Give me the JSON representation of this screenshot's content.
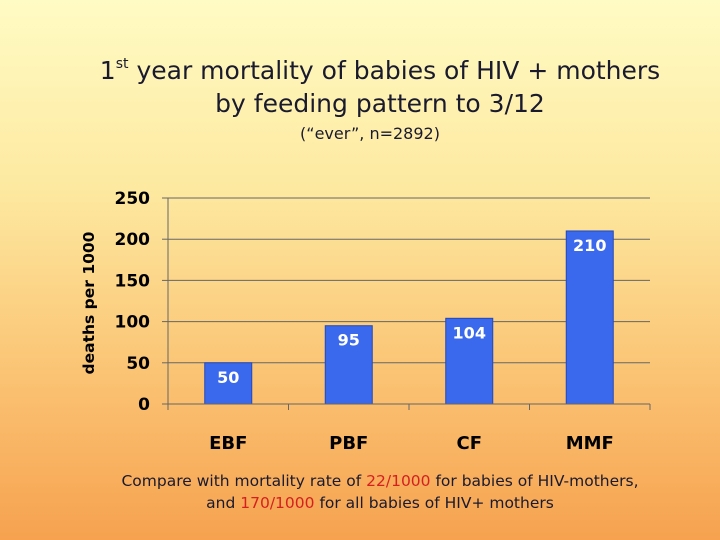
{
  "title": {
    "line1_prefix": "1",
    "line1_sup": "st",
    "line1_rest": " year mortality of babies of HIV + mothers",
    "line2": "by feeding pattern to 3/12"
  },
  "subtitle": "(“ever”, n=2892)",
  "chart_data": {
    "type": "bar",
    "categories": [
      "EBF",
      "PBF",
      "CF",
      "MMF"
    ],
    "values": [
      50,
      95,
      104,
      210
    ],
    "data_labels": [
      "50",
      "95",
      "104",
      "210"
    ],
    "ylabel": "deaths per 1000",
    "ylim": [
      0,
      250
    ],
    "yticks": [
      0,
      50,
      100,
      150,
      200,
      250
    ],
    "grid": true,
    "bar_color": "#3b69ee"
  },
  "footnote": {
    "t1": "Compare with mortality rate of ",
    "v1": "22/1000",
    "t2": " for babies of HIV-mothers, and ",
    "v2": "170/1000",
    "t3": " for all babies of HIV+ mothers",
    "highlight_color": "#d62020"
  }
}
